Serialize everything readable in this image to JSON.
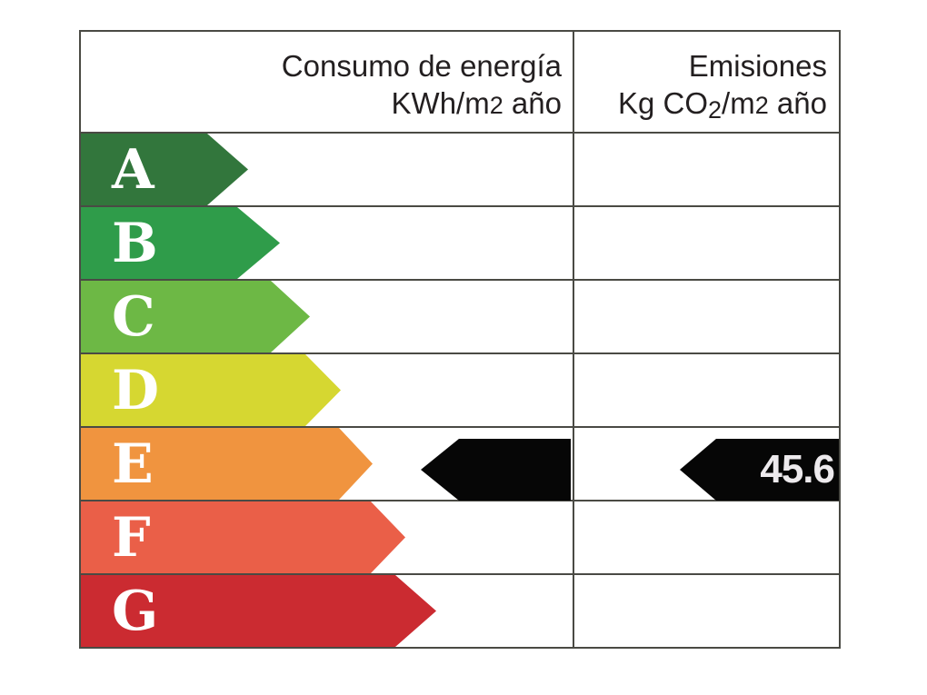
{
  "chart_data": {
    "type": "bar",
    "orientation": "horizontal",
    "title": "",
    "categories": [
      "A",
      "B",
      "C",
      "D",
      "E",
      "F",
      "G"
    ],
    "bar_colors": [
      "#32763C",
      "#2F9C4A",
      "#6DB845",
      "#D6D731",
      "#F0943F",
      "#EA5F48",
      "#CB2B31"
    ],
    "columns": [
      "Consumo de energía KWh/m2 año",
      "Emisiones Kg CO2/m2 año"
    ],
    "rating": {
      "letter": "E",
      "consumption_value": "",
      "emissions_value": "45.6"
    },
    "legend_position": "none",
    "grid": true
  },
  "header": {
    "consumption": {
      "line1": "Consumo de energía",
      "line2_pre": "KWh/m",
      "line2_sup": "2",
      "line2_post": " año"
    },
    "emissions": {
      "line1": "Emisiones",
      "line2_pre": "Kg CO",
      "line2_sub": "2",
      "line2_mid": "/m",
      "line2_sup": "2",
      "line2_post": " año"
    }
  },
  "rows": [
    {
      "letter": "A",
      "color": "#32763C",
      "arrow_width": 184,
      "head": 45
    },
    {
      "letter": "B",
      "color": "#2F9C4A",
      "arrow_width": 219,
      "head": 47
    },
    {
      "letter": "C",
      "color": "#6DB845",
      "arrow_width": 252,
      "head": 43
    },
    {
      "letter": "D",
      "color": "#D6D731",
      "arrow_width": 286,
      "head": 39
    },
    {
      "letter": "E",
      "color": "#F0943F",
      "arrow_width": 321,
      "head": 37
    },
    {
      "letter": "F",
      "color": "#EA5F48",
      "arrow_width": 357,
      "head": 38
    },
    {
      "letter": "G",
      "color": "#CB2B31",
      "arrow_width": 391,
      "head": 45
    }
  ],
  "rating": {
    "emissions_value": "45.6"
  },
  "colors": {
    "line": "#4a4a44",
    "header_text": "#231f20",
    "marker": "#060606",
    "marker_text": "#edeaed"
  }
}
